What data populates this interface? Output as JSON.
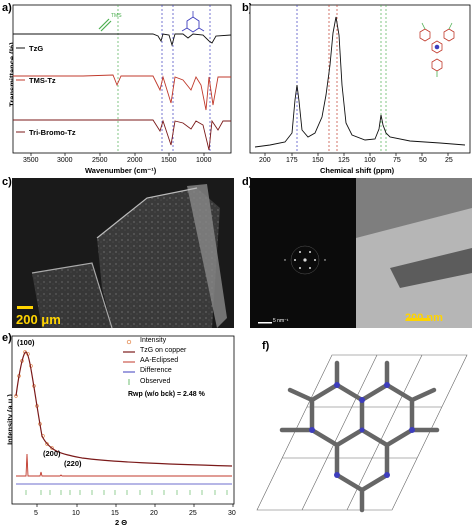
{
  "panels": {
    "a": {
      "letter": "a)",
      "ylabel": "Transmittance (%)",
      "xlabel": "Wavenumber (cm⁻¹)",
      "xticks": [
        "3500",
        "3000",
        "2500",
        "2000",
        "1500",
        "1000"
      ],
      "curves": [
        "TzG",
        "TMS-Tz",
        "Tri-Bromo-Tz"
      ],
      "struct_label": "TMS"
    },
    "b": {
      "letter": "b)",
      "xlabel": "Chemical shift (ppm)",
      "xticks": [
        "200",
        "175",
        "150",
        "125",
        "100",
        "75",
        "50",
        "25"
      ]
    },
    "c": {
      "letter": "c)",
      "scale": "200 μm"
    },
    "d": {
      "letter": "d)",
      "scale_small": "5 nm⁻¹",
      "scale": "200 nm"
    },
    "e": {
      "letter": "e)",
      "ylabel": "Intensity (a.u.)",
      "xlabel": "2 Θ",
      "xticks": [
        "5",
        "10",
        "15",
        "20",
        "25",
        "30"
      ],
      "peaks": [
        "(100)",
        "(200)",
        "(220)"
      ],
      "legend": [
        "Intensity",
        "TzG on copper",
        "AA-Eclipsed",
        "Difference",
        "Observed"
      ],
      "rwp": "Rwp (w/o bck) = 2.48 %"
    },
    "f": {
      "letter": "f)"
    }
  },
  "colors": {
    "black": "#111111",
    "red": "#c0392b",
    "darkred": "#7b1a1a",
    "blue": "#3d3dbd",
    "green": "#4caf50",
    "orange": "#e07b39"
  },
  "chart_data": [
    {
      "type": "line",
      "panel": "a",
      "title": "",
      "xlabel": "Wavenumber (cm⁻¹)",
      "ylabel": "Transmittance (%)",
      "xlim": [
        3600,
        500
      ],
      "series": [
        {
          "name": "TzG"
        },
        {
          "name": "TMS-Tz"
        },
        {
          "name": "Tri-Bromo-Tz"
        }
      ]
    },
    {
      "type": "line",
      "panel": "b",
      "xlabel": "Chemical shift (ppm)",
      "xlim": [
        220,
        10
      ],
      "x": [
        220,
        200,
        180,
        172,
        169,
        166,
        160,
        150,
        140,
        135,
        130,
        128,
        125,
        122,
        115,
        100,
        90,
        85,
        82,
        80,
        75,
        50,
        25,
        10
      ],
      "values": [
        0.02,
        0.03,
        0.05,
        0.2,
        0.55,
        0.2,
        0.08,
        0.12,
        0.3,
        0.55,
        0.9,
        1.0,
        0.85,
        0.3,
        0.08,
        0.05,
        0.06,
        0.15,
        0.12,
        0.1,
        0.05,
        0.03,
        0.03,
        0.02
      ]
    },
    {
      "type": "line",
      "panel": "e",
      "xlabel": "2 Θ",
      "ylabel": "Intensity (a.u.)",
      "xlim": [
        1.5,
        30
      ],
      "x": [
        2,
        2.5,
        3,
        3.3,
        3.6,
        4,
        4.5,
        5,
        5.5,
        6,
        7,
        8,
        9,
        10,
        12,
        15,
        20,
        25,
        30
      ],
      "values": [
        0.3,
        0.7,
        0.95,
        1.0,
        0.93,
        0.7,
        0.45,
        0.3,
        0.24,
        0.2,
        0.16,
        0.14,
        0.12,
        0.1,
        0.09,
        0.08,
        0.07,
        0.06,
        0.05
      ],
      "peak_positions": [
        3.3,
        5.7,
        8.8
      ]
    }
  ]
}
